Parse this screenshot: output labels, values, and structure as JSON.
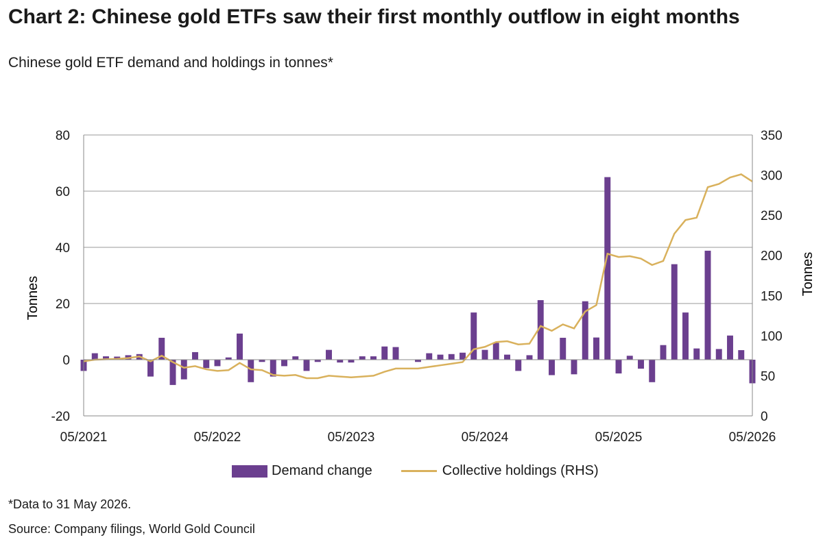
{
  "title": "Chart 2: Chinese gold ETFs saw their first monthly outflow in eight months",
  "subtitle": "Chinese gold ETF demand and holdings in tonnes*",
  "footnote": "*Data to 31 May 2026.",
  "source": "Source: Company filings, World Gold Council",
  "colors": {
    "bar": "#6b3f8f",
    "line": "#d9b15c",
    "grid": "#9a9a9a",
    "axis": "#8a8a8a",
    "text": "#1a1a1a"
  },
  "chart_data": {
    "type": "bar",
    "ylabel": "Tonnes",
    "y2label": "Tonnes",
    "ylim": [
      -20,
      80
    ],
    "y2lim": [
      0,
      350
    ],
    "yticks": [
      -20,
      0,
      20,
      40,
      60,
      80
    ],
    "y2ticks": [
      0,
      50,
      100,
      150,
      200,
      250,
      300,
      350
    ],
    "x_tick_labels": [
      "05/2021",
      "05/2022",
      "05/2023",
      "05/2024",
      "05/2025",
      "05/2026"
    ],
    "legend_position": "bottom",
    "series": [
      {
        "name": "Demand change",
        "type": "bar",
        "axis": "left",
        "values": [
          -4,
          2.3,
          1.2,
          1.1,
          1.6,
          2,
          -6,
          7.8,
          -9,
          -7,
          2.7,
          -3,
          -2.3,
          0.8,
          9.3,
          -8,
          -0.8,
          -6,
          -2.3,
          1.2,
          -4,
          -0.8,
          3.5,
          -1,
          -1,
          1.2,
          1.2,
          4.7,
          4.5,
          0,
          -0.8,
          2.3,
          1.8,
          2,
          2.5,
          16.8,
          3.5,
          6,
          1.8,
          -4,
          1.6,
          21.2,
          -5.5,
          7.8,
          -5.2,
          20.8,
          7.9,
          65,
          -4.9,
          1.4,
          -3.2,
          -8,
          5.2,
          34,
          16.8,
          4,
          38.8,
          3.8,
          8.6,
          3.4,
          -8.4
        ]
      },
      {
        "name": "Collective holdings (RHS)",
        "type": "line",
        "axis": "right",
        "values": [
          68,
          70,
          70.5,
          71,
          72,
          74,
          68,
          75,
          67,
          60,
          62,
          58,
          56,
          57,
          66,
          58,
          57,
          51,
          50,
          51,
          47,
          47,
          50,
          49,
          48,
          49,
          50,
          55,
          59,
          59,
          59,
          61,
          63,
          65,
          67,
          83,
          86,
          92,
          93,
          89,
          90,
          112,
          106,
          114,
          109,
          130,
          138,
          202,
          198,
          199,
          196,
          188,
          193,
          227,
          244,
          247,
          285,
          289,
          297,
          301,
          292
        ]
      }
    ]
  }
}
